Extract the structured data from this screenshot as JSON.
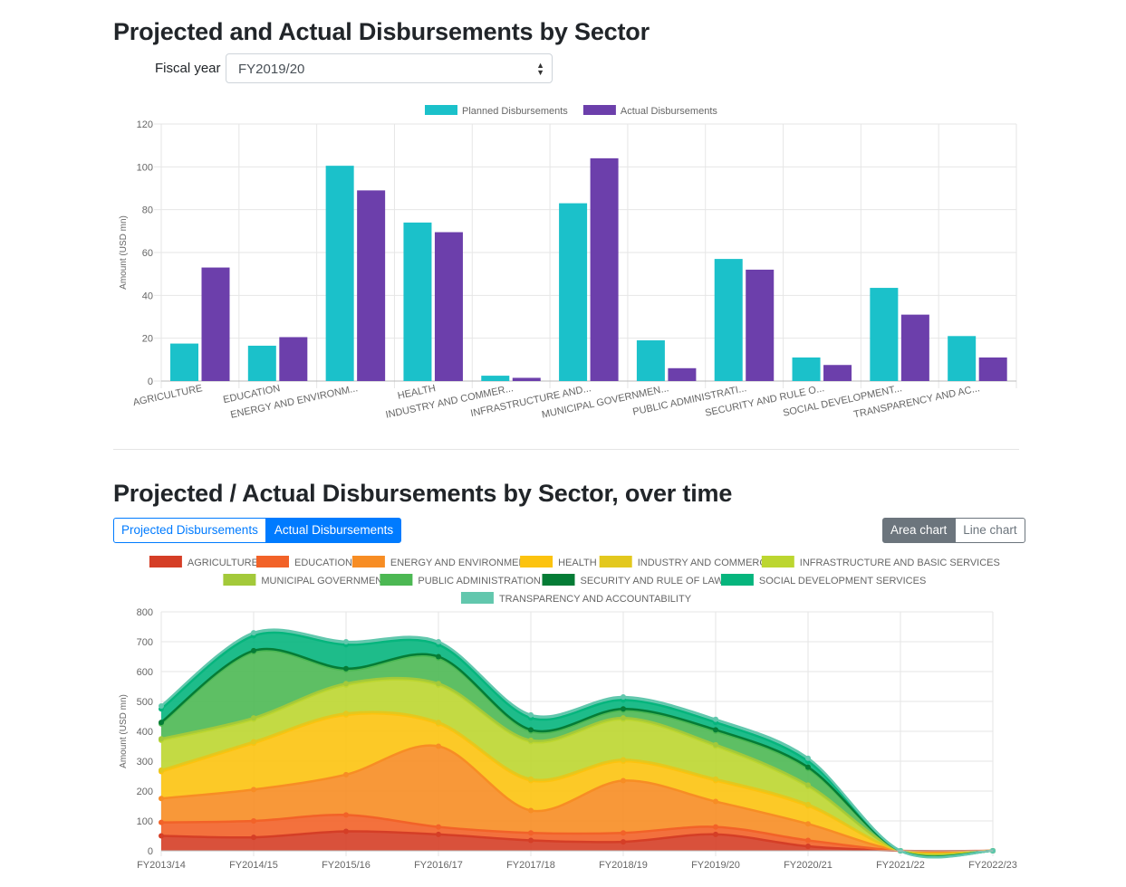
{
  "header": {
    "title1": "Projected and Actual Disbursements by Sector",
    "title2": "Projected / Actual Disbursements by Sector, over time"
  },
  "filter": {
    "label": "Fiscal year",
    "value": "FY2019/20"
  },
  "toggles": {
    "projected": "Projected Disbursements",
    "actual": "Actual Disbursements",
    "area": "Area chart",
    "line": "Line chart"
  },
  "colors": {
    "planned": "#1bc1ca",
    "actual": "#6c3fab",
    "primary": "#007bff",
    "secondary": "#6c757d"
  },
  "chart_data": [
    {
      "type": "bar",
      "categories": [
        "AGRICULTURE",
        "EDUCATION",
        "ENERGY AND ENVIRONM...",
        "HEALTH",
        "INDUSTRY AND COMMER...",
        "INFRASTRUCTURE AND...",
        "MUNICIPAL GOVERNMEN...",
        "PUBLIC ADMINISTRATI...",
        "SECURITY AND RULE O...",
        "SOCIAL DEVELOPMENT...",
        "TRANSPARENCY AND AC..."
      ],
      "series": [
        {
          "name": "Planned Disbursements",
          "color": "#1bc1ca",
          "values": [
            17.5,
            16.5,
            100.5,
            74,
            2.5,
            83,
            19,
            57,
            11,
            43.5,
            21
          ]
        },
        {
          "name": "Actual Disbursements",
          "color": "#6c3fab",
          "values": [
            53,
            20.5,
            89,
            69.5,
            1.5,
            104,
            6,
            52,
            7.5,
            31,
            11
          ]
        }
      ],
      "ylabel": "Amount (USD mn)",
      "ylim": [
        0,
        120
      ],
      "yticks": [
        "0",
        "20",
        "40",
        "60",
        "80",
        "100",
        "120"
      ],
      "grid": true,
      "legend": "top-center"
    },
    {
      "type": "area",
      "categories": [
        "FY2013/14",
        "FY2014/15",
        "FY2015/16",
        "FY2016/17",
        "FY2017/18",
        "FY2018/19",
        "FY2019/20",
        "FY2020/21",
        "FY2021/22",
        "FY2022/23"
      ],
      "stacked": true,
      "ylabel": "Amount (USD mn)",
      "ylim": [
        0,
        800
      ],
      "yticks": [
        "0",
        "100",
        "200",
        "300",
        "400",
        "500",
        "600",
        "700",
        "800"
      ],
      "grid": true,
      "legend": "top-center",
      "series": [
        {
          "name": "AGRICULTURE",
          "color": "#d53e26",
          "values": [
            50,
            45,
            65,
            55,
            35,
            30,
            55,
            15,
            0,
            0
          ]
        },
        {
          "name": "EDUCATION",
          "color": "#f26228",
          "values": [
            45,
            55,
            55,
            25,
            25,
            30,
            25,
            20,
            0,
            0
          ]
        },
        {
          "name": "ENERGY AND ENVIRONMENT",
          "color": "#f78d24",
          "values": [
            80,
            105,
            135,
            270,
            75,
            175,
            85,
            55,
            0,
            0
          ]
        },
        {
          "name": "HEALTH",
          "color": "#fcc30f",
          "values": [
            90,
            155,
            200,
            75,
            100,
            65,
            70,
            60,
            0,
            0
          ]
        },
        {
          "name": "INDUSTRY AND COMMERCE",
          "color": "#e3c81e",
          "values": [
            5,
            5,
            5,
            5,
            5,
            5,
            5,
            5,
            0,
            0
          ]
        },
        {
          "name": "INFRASTRUCTURE AND BASIC SERVICES",
          "color": "#bcd630",
          "values": [
            100,
            75,
            95,
            125,
            125,
            135,
            110,
            60,
            0,
            0
          ]
        },
        {
          "name": "MUNICIPAL GOVERNMENT",
          "color": "#a3c93a",
          "values": [
            5,
            5,
            5,
            5,
            5,
            5,
            5,
            5,
            0,
            0
          ]
        },
        {
          "name": "PUBLIC ADMINISTRATION",
          "color": "#4cb853",
          "values": [
            50,
            220,
            45,
            85,
            30,
            25,
            45,
            55,
            0,
            0
          ]
        },
        {
          "name": "SECURITY AND RULE OF LAW",
          "color": "#057c36",
          "values": [
            5,
            5,
            5,
            5,
            5,
            5,
            5,
            5,
            0,
            0
          ]
        },
        {
          "name": "SOCIAL DEVELOPMENT SERVICES",
          "color": "#06b57d",
          "values": [
            45,
            50,
            80,
            40,
            40,
            30,
            25,
            20,
            0,
            0
          ]
        },
        {
          "name": "TRANSPARENCY AND ACCOUNTABILITY",
          "color": "#62c7ad",
          "values": [
            10,
            10,
            10,
            10,
            10,
            10,
            10,
            10,
            0,
            0
          ]
        }
      ]
    }
  ]
}
